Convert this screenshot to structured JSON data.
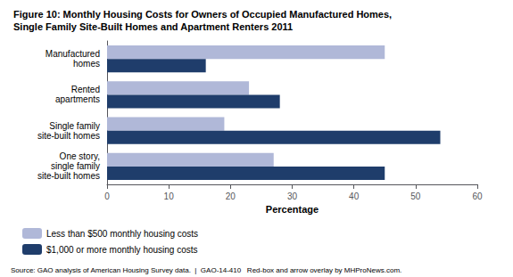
{
  "chart_data": {
    "type": "bar",
    "orientation": "horizontal",
    "title": "Figure 10: Monthly Housing Costs for Owners of Occupied Manufactured Homes,\nSingle Family Site-Built Homes and Apartment Renters 2011",
    "categories": [
      "Manufactured\nhomes",
      "Rented\napartments",
      "Single family\nsite-built homes",
      "One story,\nsingle family\nsite-built homes"
    ],
    "series": [
      {
        "name": "Less than $500 monthly housing costs",
        "color": "#b0b8d8",
        "values": [
          45,
          23,
          19,
          27
        ]
      },
      {
        "name": "$1,000 or more monthly housing costs",
        "color": "#1f3d6b",
        "values": [
          16,
          28,
          54,
          45
        ]
      }
    ],
    "xlabel": "Percentage",
    "xlim": [
      0,
      60
    ],
    "xticks": [
      0,
      10,
      20,
      30,
      40,
      50,
      60
    ],
    "grid": false,
    "legend": "bottom",
    "annotations": [
      "Source: GAO analysis of American Housing Survey data.  |  GAO-14-410   Red-box and arrow overlay by MHProNews.com."
    ]
  }
}
